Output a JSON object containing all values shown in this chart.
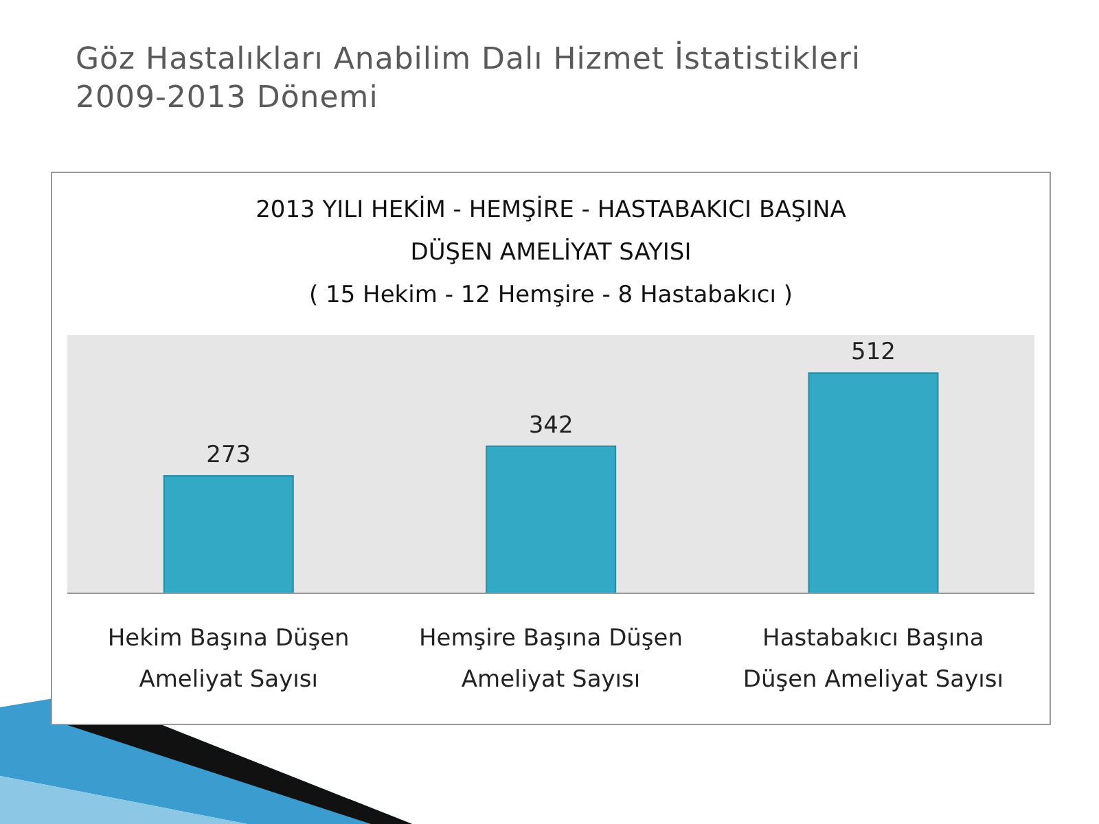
{
  "chart_data": {
    "type": "bar",
    "title": "Göz Hastalıkları Anabilim Dalı Hizmet İstatistikleri\n2009-2013 Dönemi",
    "subtitle": "2013 YILI HEKİM - HEMŞİRE - HASTABAKICI BAŞINA\nDÜŞEN AMELİYAT SAYISI\n( 15 Hekim - 12 Hemşire - 8 Hastabakıcı )",
    "categories": [
      "Hekim Başına Düşen Ameliyat Sayısı",
      "Hemşire Başına Düşen Ameliyat Sayısı",
      "Hastabakıcı Başına Düşen Ameliyat Sayısı"
    ],
    "values": [
      273,
      342,
      512
    ],
    "color": "#33a9c6",
    "data_labels": true,
    "grid": false,
    "legend": false
  }
}
